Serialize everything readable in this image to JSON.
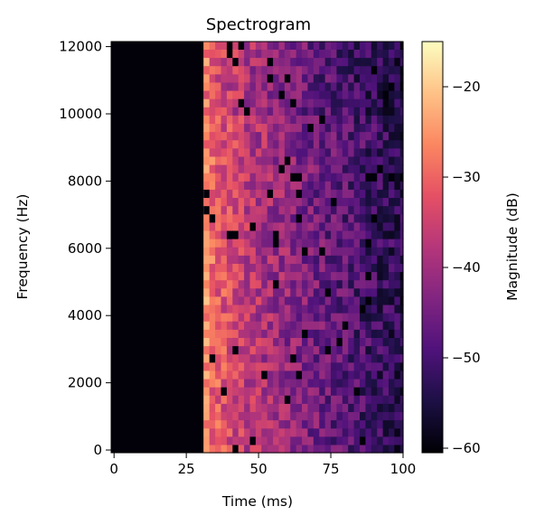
{
  "chart_data": {
    "type": "heatmap",
    "title": "Spectrogram",
    "xlabel": "Time (ms)",
    "ylabel": "Frequency (Hz)",
    "colorbar_label": "Magnitude (dB)",
    "colormap": "magma",
    "xlim": [
      -1,
      100
    ],
    "ylim": [
      -80,
      12150
    ],
    "color_range": [
      -60.5,
      -15
    ],
    "x_ticks": [
      0,
      25,
      50,
      75,
      100
    ],
    "x_tick_labels": [
      "0",
      "25",
      "50",
      "75",
      "100"
    ],
    "y_ticks": [
      0,
      2000,
      4000,
      6000,
      8000,
      10000,
      12000
    ],
    "y_tick_labels": [
      "0",
      "2000",
      "4000",
      "6000",
      "8000",
      "10000",
      "12000"
    ],
    "colorbar_ticks": [
      -20,
      -30,
      -40,
      -50,
      -60
    ],
    "colorbar_tick_labels": [
      "−20",
      "−30",
      "−40",
      "−50",
      "−60"
    ],
    "grid": false,
    "signal_onset_ms": 31,
    "time_bin_ms": 2,
    "frequency_bins": 50,
    "frequency_bin_hz": 245,
    "magnitude_at_onset_db": -26,
    "magnitude_floor_db": -60
  }
}
